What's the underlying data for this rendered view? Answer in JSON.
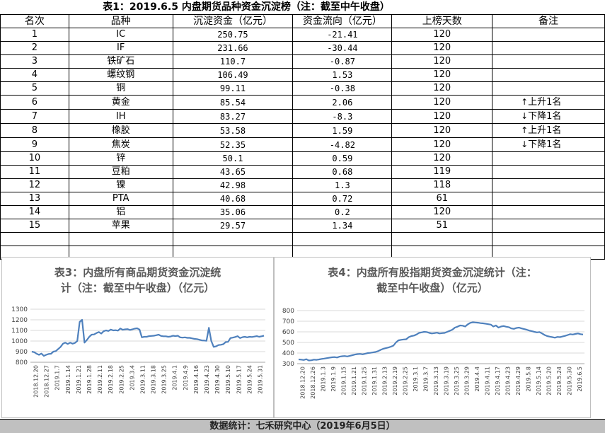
{
  "table_title": "表1：2019.6.5 内盘期货品种资金沉淀榜（注：截至中午收盘）",
  "headers": [
    "名次",
    "品种",
    "沉淀资金（亿元）",
    "资金流向（亿元）",
    "上榜天数",
    "备注"
  ],
  "rows": [
    {
      "rank": "1",
      "name": "IC",
      "fund": "250.75",
      "flow": "-21.41",
      "days": "120",
      "note": "",
      "arrow": ""
    },
    {
      "rank": "2",
      "name": "IF",
      "fund": "231.66",
      "flow": "-30.44",
      "days": "120",
      "note": "",
      "arrow": ""
    },
    {
      "rank": "3",
      "name": "铁矿石",
      "fund": "110.7",
      "flow": "-0.87",
      "days": "120",
      "note": "",
      "arrow": ""
    },
    {
      "rank": "4",
      "name": "螺纹钢",
      "fund": "106.49",
      "flow": "1.53",
      "days": "120",
      "note": "",
      "arrow": ""
    },
    {
      "rank": "5",
      "name": "铜",
      "fund": "99.11",
      "flow": "-0.38",
      "days": "120",
      "note": "",
      "arrow": ""
    },
    {
      "rank": "6",
      "name": "黄金",
      "fund": "85.54",
      "flow": "2.06",
      "days": "120",
      "note": "上升1名",
      "arrow": "↑"
    },
    {
      "rank": "7",
      "name": "IH",
      "fund": "83.27",
      "flow": "-8.3",
      "days": "120",
      "note": "下降1名",
      "arrow": "↓"
    },
    {
      "rank": "8",
      "name": "橡胶",
      "fund": "53.58",
      "flow": "1.59",
      "days": "120",
      "note": "上升1名",
      "arrow": "↑"
    },
    {
      "rank": "9",
      "name": "焦炭",
      "fund": "52.35",
      "flow": "-4.82",
      "days": "120",
      "note": "下降1名",
      "arrow": "↓"
    },
    {
      "rank": "10",
      "name": "锌",
      "fund": "50.1",
      "flow": "0.59",
      "days": "120",
      "note": "",
      "arrow": ""
    },
    {
      "rank": "11",
      "name": "豆粕",
      "fund": "43.65",
      "flow": "0.68",
      "days": "119",
      "note": "",
      "arrow": ""
    },
    {
      "rank": "12",
      "name": "镍",
      "fund": "42.98",
      "flow": "1.3",
      "days": "118",
      "note": "",
      "arrow": ""
    },
    {
      "rank": "13",
      "name": "PTA",
      "fund": "40.68",
      "flow": "0.72",
      "days": "61",
      "note": "",
      "arrow": ""
    },
    {
      "rank": "14",
      "name": "铝",
      "fund": "35.06",
      "flow": "0.2",
      "days": "120",
      "note": "",
      "arrow": ""
    },
    {
      "rank": "15",
      "name": "苹果",
      "fund": "29.57",
      "flow": "1.34",
      "days": "51",
      "note": "",
      "arrow": ""
    }
  ],
  "chart_data": [
    {
      "type": "line",
      "title_line1": "表3：内盘所有商品期货资金沉淀统",
      "title_line2": "计（注：截至中午收盘）（亿元）",
      "ylim": [
        800,
        1300
      ],
      "yticks": [
        "800",
        "900",
        "1000",
        "1100",
        "1200",
        "1300"
      ],
      "xticks": [
        "2018.12.20",
        "2018.12.27",
        "2019.1.7",
        "2019.1.14",
        "2019.1.21",
        "2019.1.28",
        "2019.2.11",
        "2019.2.18",
        "2019.2.25",
        "2019.3.4",
        "2019.3.11",
        "2019.3.18",
        "2019.3.25",
        "2019.4.1",
        "2019.4.9",
        "2019.4.16",
        "2019.4.23",
        "2019.4.30",
        "2019.5.10",
        "2019.5.17",
        "2019.5.24",
        "2019.5.31"
      ],
      "color": "#4f81bd",
      "values": [
        900,
        895,
        880,
        870,
        882,
        860,
        870,
        878,
        880,
        900,
        905,
        925,
        945,
        975,
        985,
        972,
        985,
        975,
        982,
        1000,
        1180,
        1200,
        985,
        1010,
        1040,
        1060,
        1062,
        1075,
        1085,
        1070,
        1092,
        1100,
        1095,
        1108,
        1100,
        1102,
        1098,
        1118,
        1106,
        1110,
        1112,
        1104,
        1110,
        1117,
        1120,
        1108,
        1035,
        1040,
        1040,
        1046,
        1048,
        1050,
        1055,
        1060,
        1048,
        1045,
        1045,
        1040,
        1043,
        1050,
        1046,
        1050,
        1035,
        1032,
        1035,
        1030,
        1030,
        1025,
        1020,
        1018,
        1012,
        1006,
        1005,
        1002,
        1125,
        1000,
        945,
        950,
        962,
        965,
        970,
        990,
        992,
        1028,
        1032,
        1038,
        1046,
        1028,
        1036,
        1040,
        1035,
        1040,
        1038,
        1042,
        1046,
        1040,
        1045,
        1050
      ]
    },
    {
      "type": "line",
      "title_line1": "表4：内盘所有股指期货资金沉淀统计（注：",
      "title_line2": "截至中午收盘）（亿元）",
      "ylim": [
        300,
        800
      ],
      "yticks": [
        "300",
        "400",
        "500",
        "600",
        "700",
        "800"
      ],
      "xticks": [
        "2018.12.20",
        "2018.12.26",
        "2019.1.3",
        "2019.1.9",
        "2019.1.15",
        "2019.1.21",
        "2019.1.25",
        "2019.1.31",
        "2019.2.13",
        "2019.2.19",
        "2019.2.25",
        "2019.3.1",
        "2019.3.7",
        "2019.3.13",
        "2019.3.19",
        "2019.3.25",
        "2019.3.29",
        "2019.4.4",
        "2019.4.11",
        "2019.4.17",
        "2019.4.23",
        "2019.4.29",
        "2019.5.8",
        "2019.5.14",
        "2019.5.20",
        "2019.5.24",
        "2019.5.30",
        "2019.6.5"
      ],
      "color": "#4f81bd",
      "values": [
        340,
        338,
        335,
        342,
        330,
        332,
        338,
        336,
        340,
        345,
        348,
        352,
        356,
        360,
        362,
        358,
        366,
        370,
        372,
        368,
        374,
        380,
        386,
        390,
        392,
        388,
        394,
        400,
        402,
        406,
        410,
        418,
        430,
        440,
        446,
        452,
        460,
        470,
        500,
        520,
        525,
        528,
        530,
        550,
        560,
        565,
        575,
        590,
        595,
        600,
        598,
        590,
        585,
        588,
        592,
        585,
        588,
        590,
        600,
        610,
        620,
        640,
        648,
        660,
        658,
        650,
        670,
        685,
        690,
        688,
        686,
        682,
        680,
        676,
        672,
        668,
        650,
        660,
        640,
        650,
        655,
        648,
        644,
        632,
        628,
        636,
        640,
        632,
        626,
        620,
        612,
        606,
        600,
        595,
        598,
        585,
        570,
        560,
        555,
        550,
        545,
        552,
        550,
        556,
        562,
        570,
        578,
        575,
        580,
        585,
        578,
        575
      ]
    }
  ],
  "footer": "数据统计：七禾研究中心（2019年6月5日）"
}
